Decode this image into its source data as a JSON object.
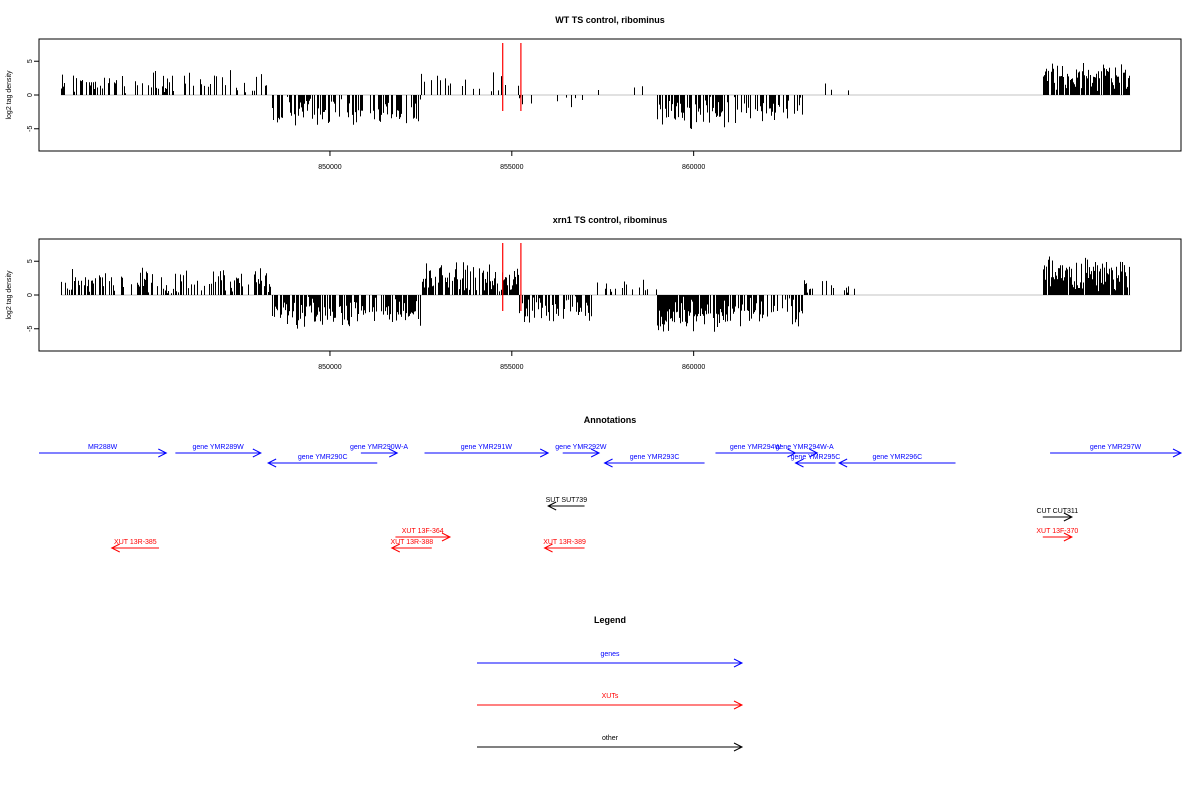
{
  "panels": [
    {
      "title": "WT TS control, ribominus",
      "ylabel": "log2 tag density",
      "yticks": [
        -5,
        0,
        5
      ],
      "ylim": [
        -7.7,
        7.7
      ],
      "xlim": [
        842000,
        873400
      ],
      "xticks": [
        850000,
        855000,
        860000
      ],
      "markers": [
        854750,
        855250
      ],
      "marker_color": "#ff0000",
      "seed": 11,
      "segments": [
        {
          "x0": 842600,
          "x1": 848400,
          "sign": 1,
          "amp": 2.2,
          "density": 0.35,
          "noise": 1.2
        },
        {
          "x0": 848400,
          "x1": 852500,
          "sign": -1,
          "amp": 3.0,
          "density": 0.55,
          "noise": 1.2
        },
        {
          "x0": 852500,
          "x1": 855200,
          "sign": 1,
          "amp": 2.2,
          "density": 0.3,
          "noise": 1.5
        },
        {
          "x0": 855200,
          "x1": 857200,
          "sign": -1,
          "amp": 1.2,
          "density": 0.12,
          "noise": 0.8
        },
        {
          "x0": 857200,
          "x1": 859000,
          "sign": 1,
          "amp": 1.0,
          "density": 0.05,
          "noise": 0.8
        },
        {
          "x0": 859000,
          "x1": 860900,
          "sign": -1,
          "amp": 3.5,
          "density": 0.6,
          "noise": 1.5
        },
        {
          "x0": 860900,
          "x1": 863000,
          "sign": -1,
          "amp": 2.5,
          "density": 0.4,
          "noise": 1.2
        },
        {
          "x0": 863000,
          "x1": 864500,
          "sign": 1,
          "amp": 1.2,
          "density": 0.05,
          "noise": 0.6
        },
        {
          "x0": 864500,
          "x1": 869600,
          "sign": 1,
          "amp": 0.0,
          "density": 0.0,
          "noise": 0.0
        },
        {
          "x0": 869600,
          "x1": 872000,
          "sign": 1,
          "amp": 3.5,
          "density": 0.9,
          "noise": 1.0
        }
      ]
    },
    {
      "title": "xrn1 TS control, ribominus",
      "ylabel": "log2 tag density",
      "yticks": [
        -5,
        0,
        5
      ],
      "ylim": [
        -7.7,
        7.7
      ],
      "xlim": [
        842000,
        873400
      ],
      "xticks": [
        850000,
        855000,
        860000
      ],
      "markers": [
        854750,
        855250
      ],
      "marker_color": "#ff0000",
      "seed": 23,
      "segments": [
        {
          "x0": 842600,
          "x1": 848400,
          "sign": 1,
          "amp": 2.6,
          "density": 0.5,
          "noise": 1.3
        },
        {
          "x0": 848400,
          "x1": 852500,
          "sign": -1,
          "amp": 3.3,
          "density": 0.75,
          "noise": 1.2
        },
        {
          "x0": 852500,
          "x1": 855200,
          "sign": 1,
          "amp": 3.0,
          "density": 0.8,
          "noise": 1.6
        },
        {
          "x0": 855200,
          "x1": 857200,
          "sign": -1,
          "amp": 2.8,
          "density": 0.6,
          "noise": 1.2
        },
        {
          "x0": 857200,
          "x1": 859000,
          "sign": 1,
          "amp": 1.5,
          "density": 0.15,
          "noise": 1.0
        },
        {
          "x0": 859000,
          "x1": 860900,
          "sign": -1,
          "amp": 4.2,
          "density": 0.85,
          "noise": 1.4
        },
        {
          "x0": 860900,
          "x1": 863000,
          "sign": -1,
          "amp": 3.0,
          "density": 0.6,
          "noise": 1.3
        },
        {
          "x0": 863000,
          "x1": 864500,
          "sign": 1,
          "amp": 1.5,
          "density": 0.2,
          "noise": 0.8
        },
        {
          "x0": 864500,
          "x1": 869600,
          "sign": 1,
          "amp": 0.0,
          "density": 0.0,
          "noise": 0.0
        },
        {
          "x0": 869600,
          "x1": 872000,
          "sign": 1,
          "amp": 4.0,
          "density": 0.95,
          "noise": 1.0
        }
      ]
    }
  ],
  "chart_data": [
    {
      "type": "bar",
      "title": "WT TS control, ribominus",
      "xlabel": "",
      "ylabel": "log2 tag density",
      "xlim": [
        842000,
        873400
      ],
      "ylim": [
        -7.7,
        7.7
      ],
      "yticks": [
        -5,
        0,
        5
      ],
      "xticks": [
        850000,
        855000,
        860000
      ],
      "grid": false,
      "markers": [
        854750,
        855250
      ]
    },
    {
      "type": "bar",
      "title": "xrn1 TS control, ribominus",
      "xlabel": "",
      "ylabel": "log2 tag density",
      "xlim": [
        842000,
        873400
      ],
      "ylim": [
        -7.7,
        7.7
      ],
      "yticks": [
        -5,
        0,
        5
      ],
      "xticks": [
        850000,
        855000,
        860000
      ],
      "grid": false,
      "markers": [
        854750,
        855250
      ]
    }
  ],
  "annotations": {
    "title": "Annotations",
    "colors": {
      "genes": "#0000ff",
      "xuts": "#ff0000",
      "other": "#000000"
    },
    "features": [
      {
        "label": "MR288W",
        "x0": 842000,
        "x1": 845500,
        "strand": "+",
        "row": 0,
        "category": "genes"
      },
      {
        "label": "gene YMR289W",
        "x0": 845750,
        "x1": 848100,
        "strand": "+",
        "row": 0,
        "category": "genes"
      },
      {
        "label": "gene YMR290C",
        "x0": 848300,
        "x1": 851300,
        "strand": "-",
        "row": 1,
        "category": "genes"
      },
      {
        "label": "gene YMR290W-A",
        "x0": 850850,
        "x1": 851850,
        "strand": "+",
        "row": 0,
        "category": "genes"
      },
      {
        "label": "gene YMR291W",
        "x0": 852600,
        "x1": 856000,
        "strand": "+",
        "row": 0,
        "category": "genes"
      },
      {
        "label": "gene YMR292W",
        "x0": 856400,
        "x1": 857400,
        "strand": "+",
        "row": 0,
        "category": "genes"
      },
      {
        "label": "gene YMR293C",
        "x0": 857550,
        "x1": 860300,
        "strand": "-",
        "row": 1,
        "category": "genes"
      },
      {
        "label": "gene YMR294W",
        "x0": 860600,
        "x1": 862800,
        "strand": "+",
        "row": 0,
        "category": "genes"
      },
      {
        "label": "gene YMR294W-A",
        "x0": 862700,
        "x1": 863400,
        "strand": "+",
        "row": 0,
        "category": "genes"
      },
      {
        "label": "gene YMR295C",
        "x0": 862800,
        "x1": 863900,
        "strand": "-",
        "row": 1,
        "category": "genes"
      },
      {
        "label": "gene YMR296C",
        "x0": 864000,
        "x1": 867200,
        "strand": "-",
        "row": 1,
        "category": "genes"
      },
      {
        "label": "gene YMR297W",
        "x0": 869800,
        "x1": 873400,
        "strand": "+",
        "row": 0,
        "category": "genes"
      },
      {
        "label": "SUT SUT739",
        "x0": 856000,
        "x1": 857000,
        "strand": "-",
        "row": 3,
        "category": "other"
      },
      {
        "label": "CUT CUT311",
        "x0": 869600,
        "x1": 870400,
        "strand": "+",
        "row": 4,
        "category": "other"
      },
      {
        "label": "XUT 13F-364",
        "x0": 851800,
        "x1": 853300,
        "strand": "+",
        "row": 5,
        "category": "xuts"
      },
      {
        "label": "XUT 13F-370",
        "x0": 869600,
        "x1": 870400,
        "strand": "+",
        "row": 5,
        "category": "xuts"
      },
      {
        "label": "XUT 13R-385",
        "x0": 844000,
        "x1": 845300,
        "strand": "-",
        "row": 6,
        "category": "xuts"
      },
      {
        "label": "XUT 13R-388",
        "x0": 851700,
        "x1": 852800,
        "strand": "-",
        "row": 6,
        "category": "xuts"
      },
      {
        "label": "XUT 13R-389",
        "x0": 855900,
        "x1": 857000,
        "strand": "-",
        "row": 6,
        "category": "xuts"
      }
    ]
  },
  "legend": {
    "title": "Legend",
    "items": [
      {
        "label": "genes",
        "color": "#0000ff"
      },
      {
        "label": "XUTs",
        "color": "#ff0000"
      },
      {
        "label": "other",
        "color": "#000000"
      }
    ]
  }
}
